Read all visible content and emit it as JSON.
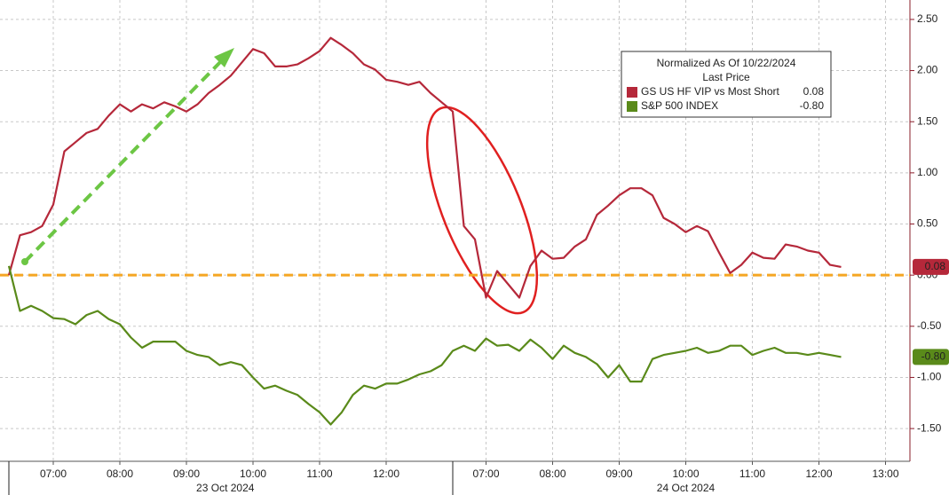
{
  "chart_data": {
    "type": "line",
    "legend": {
      "title": "Normalized As Of 10/22/2024",
      "subtitle": "Last Price"
    },
    "days": [
      {
        "label": "23 Oct 2024",
        "times": [
          null,
          null,
          null,
          null,
          "07:00",
          null,
          null,
          null,
          null,
          null,
          "08:00",
          null,
          null,
          null,
          null,
          null,
          "09:00",
          null,
          null,
          null,
          null,
          null,
          "10:00",
          null,
          null,
          null,
          null,
          null,
          "11:00",
          null,
          null,
          null,
          null,
          null,
          "12:00",
          null,
          null,
          null,
          null,
          null
        ]
      },
      {
        "label": "24 Oct 2024",
        "times": [
          null,
          null,
          null,
          "07:00",
          null,
          null,
          null,
          null,
          null,
          "08:00",
          null,
          null,
          null,
          null,
          null,
          "09:00",
          null,
          null,
          null,
          null,
          null,
          "10:00",
          null,
          null,
          null,
          null,
          null,
          "11:00",
          null,
          null,
          null,
          null,
          null,
          "12:00",
          null,
          null,
          null,
          null,
          null,
          "13:00",
          null,
          null,
          null
        ]
      }
    ],
    "series": [
      {
        "name": "GS US HF VIP vs Most Short",
        "color": "#b5283a",
        "values": [
          0.0,
          0.39,
          0.42,
          0.48,
          0.69,
          1.21,
          1.3,
          1.39,
          1.43,
          1.56,
          1.67,
          1.6,
          1.67,
          1.63,
          1.69,
          1.65,
          1.6,
          1.67,
          1.78,
          1.86,
          1.95,
          2.08,
          2.21,
          2.17,
          2.04,
          2.04,
          2.06,
          2.12,
          2.19,
          2.32,
          2.25,
          2.17,
          2.06,
          2.01,
          1.91,
          1.89,
          1.86,
          1.89,
          1.78,
          1.69,
          1.6,
          0.48,
          0.35,
          -0.22,
          0.04,
          -0.09,
          -0.22,
          0.09,
          0.24,
          0.16,
          0.17,
          0.28,
          0.35,
          0.59,
          0.68,
          0.78,
          0.85,
          0.85,
          0.78,
          0.56,
          0.5,
          0.42,
          0.48,
          0.43,
          0.22,
          0.02,
          0.1,
          0.22,
          0.17,
          0.16,
          0.3,
          0.28,
          0.24,
          0.22,
          0.1,
          0.08,
          null,
          null,
          null,
          null,
          null,
          null,
          null
        ],
        "value_labels": [
          null,
          null,
          null,
          null,
          null,
          null,
          null,
          null,
          null,
          null,
          null,
          null,
          null,
          null,
          null,
          null,
          null,
          null,
          null,
          null,
          null,
          null,
          null,
          null,
          null,
          null,
          null,
          null,
          null,
          null,
          null,
          null,
          null,
          null,
          null,
          null,
          null,
          null,
          null,
          null,
          null,
          null,
          null,
          null,
          null,
          null,
          null,
          null,
          null,
          null,
          null,
          null,
          null,
          null,
          null,
          null,
          null,
          null,
          null,
          null,
          null,
          null,
          null,
          null,
          null,
          null,
          null,
          null,
          null,
          null,
          null,
          null,
          null,
          null,
          null,
          "0.08",
          null,
          null,
          null,
          null,
          null,
          null,
          null
        ]
      },
      {
        "name": "S&P 500 INDEX",
        "color": "#5a8a1a",
        "values": [
          0.09,
          -0.35,
          -0.3,
          -0.35,
          -0.42,
          -0.43,
          -0.48,
          -0.39,
          -0.35,
          -0.43,
          -0.48,
          -0.61,
          -0.71,
          -0.65,
          -0.65,
          -0.65,
          -0.74,
          -0.78,
          -0.8,
          -0.88,
          -0.85,
          -0.88,
          -1.0,
          -1.11,
          -1.08,
          -1.13,
          -1.17,
          -1.26,
          -1.34,
          -1.46,
          -1.34,
          -1.17,
          -1.08,
          -1.11,
          -1.06,
          -1.06,
          -1.02,
          -0.97,
          -0.94,
          -0.88,
          -0.74,
          -0.69,
          -0.74,
          -0.62,
          -0.69,
          -0.68,
          -0.74,
          -0.63,
          -0.71,
          -0.82,
          -0.69,
          -0.76,
          -0.8,
          -0.87,
          -1.0,
          -0.88,
          -1.04,
          -1.04,
          -0.82,
          -0.78,
          -0.76,
          -0.74,
          -0.71,
          -0.76,
          -0.74,
          -0.69,
          -0.69,
          -0.78,
          -0.74,
          -0.71,
          -0.76,
          -0.76,
          -0.78,
          -0.76,
          -0.78,
          -0.8,
          null,
          null,
          null,
          null,
          null,
          null,
          null
        ],
        "value_labels": [
          null,
          null,
          null,
          null,
          null,
          null,
          null,
          null,
          null,
          null,
          null,
          null,
          null,
          null,
          null,
          null,
          null,
          null,
          null,
          null,
          null,
          null,
          null,
          null,
          null,
          null,
          null,
          null,
          null,
          null,
          null,
          null,
          null,
          null,
          null,
          null,
          null,
          null,
          null,
          null,
          null,
          null,
          null,
          null,
          null,
          null,
          null,
          null,
          null,
          null,
          null,
          null,
          null,
          null,
          null,
          null,
          null,
          null,
          null,
          null,
          null,
          null,
          null,
          null,
          null,
          null,
          null,
          null,
          null,
          null,
          null,
          null,
          null,
          null,
          null,
          "-0.80",
          null,
          null,
          null,
          null,
          null,
          null,
          null
        ]
      }
    ],
    "reference_line": {
      "value": 0,
      "color": "#f5a623"
    },
    "ylim": [
      -1.82,
      2.69
    ],
    "yticks": [
      {
        "value": 2.5,
        "label": "2.50"
      },
      {
        "value": 2,
        "label": "2.00"
      },
      {
        "value": 1.5,
        "label": "1.50"
      },
      {
        "value": 1,
        "label": "1.00"
      },
      {
        "value": 0.5,
        "label": "0.50"
      },
      {
        "value": 0,
        "label": "0.00"
      },
      {
        "value": -0.5,
        "label": "-0.50"
      },
      {
        "value": -1,
        "label": "-1.00"
      },
      {
        "value": -1.5,
        "label": "-1.50"
      }
    ],
    "grid": true
  }
}
